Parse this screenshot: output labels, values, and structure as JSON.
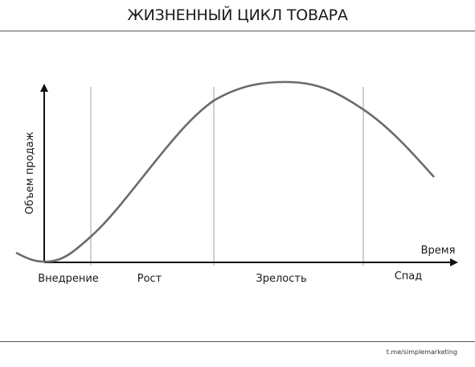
{
  "title": "ЖИЗНЕННЫЙ ЦИКЛ ТОВАРА",
  "y_axis_label": "Объем продаж",
  "x_axis_label": "Время",
  "stages": [
    "Внедрение",
    "Рост",
    "Зрелость",
    "Спад"
  ],
  "credit": "t.me/simplemarketing",
  "colors": {
    "curve": "#6b6b6b",
    "axes": "#111111",
    "dividers": "#8a8a8a",
    "text": "#1a1a1a"
  }
}
